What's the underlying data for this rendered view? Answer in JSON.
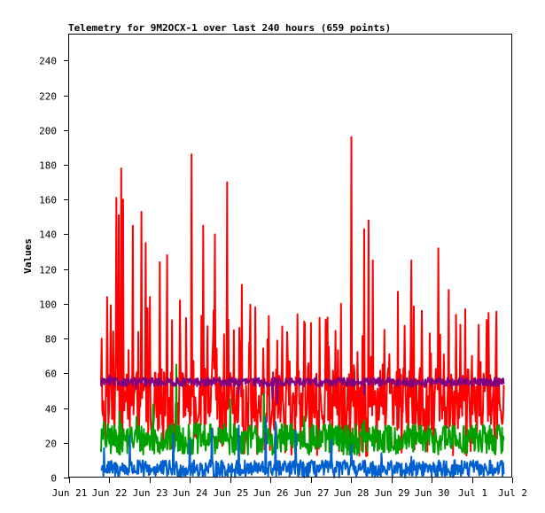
{
  "chart_data": {
    "type": "line",
    "title": "Telemetry for 9M2OCX-1 over last 240 hours (659 points)",
    "xlabel": "",
    "ylabel": "Values",
    "x_ticks": [
      "Jun 21",
      "Jun 22",
      "Jun 23",
      "Jun 24",
      "Jun 25",
      "Jun 26",
      "Jun 27",
      "Jun 28",
      "Jun 29",
      "Jun 30",
      "Jul 1",
      "Jul 2"
    ],
    "xlim_hours": [
      0,
      264
    ],
    "data_start_hour": 19,
    "data_end_hour": 259,
    "y_ticks": [
      0,
      20,
      40,
      60,
      80,
      100,
      120,
      140,
      160,
      180,
      200,
      220,
      240
    ],
    "ylim": [
      0,
      255
    ],
    "grid": false,
    "legend": "none",
    "point_count": 659,
    "series": [
      {
        "color": "#ff0000",
        "base": 45,
        "noise": 18,
        "peaks": [
          [
            19.5,
            80
          ],
          [
            22.5,
            104
          ],
          [
            28,
            161
          ],
          [
            29.5,
            151
          ],
          [
            31,
            178
          ],
          [
            32,
            160
          ],
          [
            38,
            145
          ],
          [
            43,
            153
          ],
          [
            45.5,
            135
          ],
          [
            48,
            104
          ],
          [
            54,
            124
          ],
          [
            58.5,
            128
          ],
          [
            66,
            102
          ],
          [
            73,
            186
          ],
          [
            80,
            145
          ],
          [
            87,
            140
          ],
          [
            94,
            170
          ],
          [
            103,
            111
          ],
          [
            111,
            98
          ],
          [
            119,
            93
          ],
          [
            127,
            87
          ],
          [
            136,
            94
          ],
          [
            144,
            89
          ],
          [
            153,
            91
          ],
          [
            162,
            100
          ],
          [
            168,
            196
          ],
          [
            176,
            143
          ],
          [
            178.5,
            148
          ],
          [
            181,
            125
          ],
          [
            188,
            85
          ],
          [
            196,
            107
          ],
          [
            204,
            125
          ],
          [
            210,
            96
          ],
          [
            215,
            83
          ],
          [
            220,
            132
          ],
          [
            226,
            108
          ],
          [
            233,
            88
          ],
          [
            240,
            70
          ]
        ]
      },
      {
        "color": "#00a000",
        "base": 22,
        "noise": 9,
        "peaks": [
          [
            21,
            32
          ],
          [
            30,
            38
          ],
          [
            40,
            35
          ],
          [
            50,
            42
          ],
          [
            64,
            65
          ],
          [
            76,
            32
          ],
          [
            96,
            45
          ],
          [
            116,
            48
          ],
          [
            140,
            35
          ],
          [
            160,
            30
          ],
          [
            176,
            33
          ],
          [
            200,
            27
          ],
          [
            226,
            29
          ],
          [
            240,
            30
          ]
        ]
      },
      {
        "color": "#0060d0",
        "base": 5,
        "noise": 5,
        "peaks": [
          [
            21,
            17
          ],
          [
            36,
            24
          ],
          [
            62,
            25
          ],
          [
            72,
            22
          ],
          [
            85,
            28
          ],
          [
            101,
            30
          ],
          [
            117,
            35
          ],
          [
            123,
            32
          ],
          [
            135,
            27
          ],
          [
            156,
            22
          ],
          [
            168,
            19
          ],
          [
            186,
            14
          ],
          [
            204,
            12
          ],
          [
            230,
            10
          ],
          [
            240,
            8
          ]
        ]
      },
      {
        "color": "#800080",
        "base": 55,
        "noise": 2.5,
        "peaks": [
          [
            20,
            57
          ],
          [
            24,
            59
          ],
          [
            40,
            51
          ],
          [
            48,
            53
          ],
          [
            60,
            56
          ],
          [
            82,
            53
          ],
          [
            101,
            48
          ],
          [
            110,
            53
          ],
          [
            121,
            45
          ],
          [
            124,
            43
          ],
          [
            137,
            53
          ],
          [
            162,
            56
          ],
          [
            176,
            48
          ],
          [
            186,
            53
          ],
          [
            212,
            52
          ],
          [
            226,
            55
          ],
          [
            240,
            54
          ]
        ]
      }
    ]
  }
}
